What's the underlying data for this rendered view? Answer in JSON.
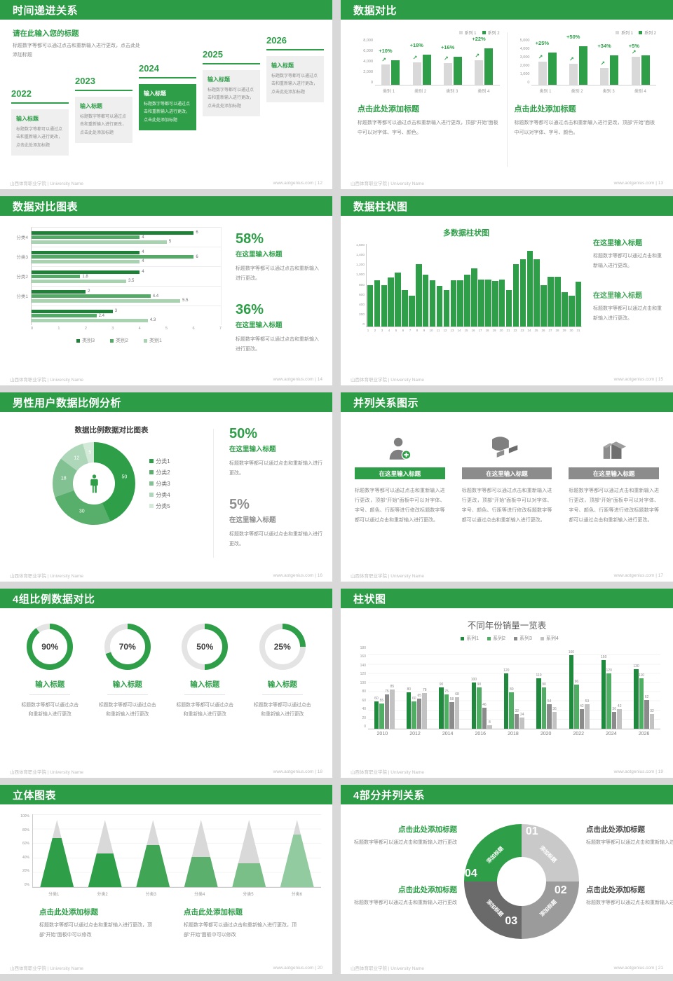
{
  "page_bg": "#d8d8d8",
  "accent_green": "#2d9c46",
  "footer": {
    "left": "山西体育职业学院 | University Name",
    "site": "www.aotgenius.com"
  },
  "slides": {
    "s12": {
      "title": "时间递进关系",
      "page": "12",
      "footer_right": "www.aotgenius.com | 12",
      "intro_title": "请在此输入您的标题",
      "intro_body": "标题数字等都可以通过点击和重新输入进行更改，点击此处添加标题",
      "milestones": [
        {
          "year": "2022",
          "box_title": "输入标题",
          "box_body": "标题数字等都可以通过点击和重新输入进行更改，点击此处添加标题",
          "highlight": false
        },
        {
          "year": "2023",
          "box_title": "输入标题",
          "box_body": "标题数字等都可以通过点击和重新输入进行更改，点击此处添加标题",
          "highlight": false
        },
        {
          "year": "2024",
          "box_title": "输入标题",
          "box_body": "标题数字等都可以通过点击和重新输入进行更改，点击此处添加标题",
          "highlight": true
        },
        {
          "year": "2025",
          "box_title": "输入标题",
          "box_body": "标题数字等都可以通过点击和重新输入进行更改，点击此处添加标题",
          "highlight": false
        },
        {
          "year": "2026",
          "box_title": "输入标题",
          "box_body": "标题数字等都可以通过点击和重新输入进行更改，点击此处添加标题",
          "highlight": false
        }
      ]
    },
    "s13": {
      "title": "数据对比",
      "page": "13",
      "footer_right": "www.aotgenius.com | 13",
      "panels": [
        {
          "legend": [
            "系列 1",
            "系列 2"
          ],
          "yticks": [
            "8,000",
            "6,000",
            "4,000",
            "2,000",
            "0"
          ],
          "ymax": 8000,
          "categories": [
            "类别 1",
            "类别 2",
            "类别 3",
            "类别 4"
          ],
          "gray": [
            3500,
            3900,
            3700,
            4300
          ],
          "green": [
            4200,
            5200,
            4800,
            6300
          ],
          "percents": [
            "+10%",
            "+18%",
            "+16%",
            "+22%"
          ],
          "caption_title": "点击此处添加标题",
          "caption_body": "标题数字等都可以通过点击和重新输入进行更改，顶部“开始”面板中可以对字体、字号、颜色。"
        },
        {
          "legend": [
            "系列 1",
            "系列 2"
          ],
          "yticks": [
            "5,000",
            "4,000",
            "3,000",
            "2,000",
            "1,000",
            "0"
          ],
          "ymax": 5000,
          "categories": [
            "类别 1",
            "类别 2",
            "类别 3",
            "类别 4"
          ],
          "gray": [
            2500,
            2300,
            1800,
            3000
          ],
          "green": [
            3500,
            4200,
            3200,
            3200
          ],
          "percents": [
            "+25%",
            "+50%",
            "+34%",
            "+5%"
          ],
          "caption_title": "点击此处添加标题",
          "caption_body": "标题数字等都可以通过点击和重新输入进行更改，顶部“开始”面板中可以对字体、字号、颜色。"
        }
      ]
    },
    "s14": {
      "title": "数据对比图表",
      "page": "14",
      "footer_right": "www.aotgenius.com | 14",
      "groups": [
        {
          "label": "分类4",
          "values": [
            6,
            4,
            5
          ]
        },
        {
          "label": "分类3",
          "values": [
            4,
            6,
            4
          ]
        },
        {
          "label": "分类2",
          "values": [
            4,
            1.8,
            3.5
          ]
        },
        {
          "label": "分类1",
          "values": [
            2,
            4.4,
            5.5
          ]
        },
        {
          "label": "",
          "values": [
            3,
            2.4,
            4.3
          ]
        }
      ],
      "xmax": 7,
      "xticks": [
        "0",
        "1",
        "2",
        "3",
        "4",
        "5",
        "6",
        "7"
      ],
      "legend": [
        "类别3",
        "类别2",
        "类别1"
      ],
      "bar_colors": [
        "#1f8038",
        "#55aa68",
        "#a8d2b0"
      ],
      "stats": [
        {
          "pct": "58%",
          "subtitle": "在这里输入标题",
          "body": "标题数字等都可以通过点击和重新输入进行更改。"
        },
        {
          "pct": "36%",
          "subtitle": "在这里输入标题",
          "body": "标题数字等都可以通过点击和重新输入进行更改。"
        }
      ]
    },
    "s15": {
      "title": "数据柱状图",
      "page": "15",
      "footer_right": "www.aotgenius.com | 15",
      "chart_title": "多数据柱状图",
      "yticks": [
        "1,600",
        "1,400",
        "1,200",
        "1,000",
        "800",
        "600",
        "400",
        "200",
        "0"
      ],
      "ymax": 1600,
      "values": [
        800,
        900,
        800,
        950,
        1040,
        700,
        590,
        1200,
        1000,
        900,
        790,
        700,
        900,
        900,
        1010,
        1120,
        910,
        910,
        880,
        905,
        700,
        1200,
        1300,
        1460,
        1300,
        800,
        960,
        965,
        660,
        590,
        870
      ],
      "texts": [
        {
          "subtitle": "在这里输入标题",
          "body": "标题数字等都可以通过点击和重新输入进行更改。"
        },
        {
          "subtitle": "在这里输入标题",
          "body": "标题数字等都可以通过点击和重新输入进行更改。"
        }
      ]
    },
    "s16": {
      "title": "男性用户数据比例分析",
      "page": "16",
      "footer_right": "www.aotgenius.com | 16",
      "chart_title": "数据比例数据对比图表",
      "segments": [
        {
          "label": "分类1",
          "value": 50,
          "color": "#2e9e48"
        },
        {
          "label": "分类2",
          "value": 30,
          "color": "#58ae6b"
        },
        {
          "label": "分类3",
          "value": 18,
          "color": "#82c292"
        },
        {
          "label": "分类4",
          "value": 12,
          "color": "#aed6b8"
        },
        {
          "label": "分类5",
          "value": 5,
          "color": "#d4ead9"
        }
      ],
      "stats": [
        {
          "pct": "50%",
          "subtitle": "在这里输入标题",
          "body": "标题数字等都可以通过点击和重新输入进行更改。",
          "muted": false
        },
        {
          "pct": "5%",
          "subtitle": "在这里输入标题",
          "body": "标题数字等都可以通过点击和重新输入进行更改。",
          "muted": true
        }
      ]
    },
    "s17": {
      "title": "并列关系图示",
      "page": "17",
      "footer_right": "www.aotgenius.com | 17",
      "items": [
        {
          "icon": "person-add-icon",
          "button": "在这里输入标题",
          "accent": true,
          "body": "标题数字等都可以通过点击和重新输入进行更改，顶部“开始”面板中可以对字体、字号、颜色、行距等进行修改标题数字等都可以通过点击和重新输入进行更改。"
        },
        {
          "icon": "pie-3d-icon",
          "button": "在这里输入标题",
          "accent": false,
          "body": "标题数字等都可以通过点击和重新输入进行更改，顶部“开始”面板中可以对字体、字号、颜色、行距等进行修改标题数字等都可以通过点击和重新输入进行更改。"
        },
        {
          "icon": "building-icon",
          "button": "在这里输入标题",
          "accent": false,
          "body": "标题数字等都可以通过点击和重新输入进行更改，顶部“开始”面板中可以对字体、字号、颜色、行距等进行修改标题数字等都可以通过点击和重新输入进行更改。"
        }
      ]
    },
    "s18": {
      "title": "4组比例数据对比",
      "page": "18",
      "footer_right": "www.aotgenius.com | 18",
      "items": [
        {
          "pct": 90,
          "pct_label": "90%",
          "label": "输入标题",
          "body": "标题数字等都可以通过点击和重新输入进行更改"
        },
        {
          "pct": 70,
          "pct_label": "70%",
          "label": "输入标题",
          "body": "标题数字等都可以通过点击和重新输入进行更改"
        },
        {
          "pct": 50,
          "pct_label": "50%",
          "label": "输入标题",
          "body": "标题数字等都可以通过点击和重新输入进行更改"
        },
        {
          "pct": 25,
          "pct_label": "25%",
          "label": "输入标题",
          "body": "标题数字等都可以通过点击和重新输入进行更改"
        }
      ]
    },
    "s19": {
      "title": "柱状图",
      "page": "19",
      "footer_right": "www.aotgenius.com | 19",
      "chart_title": "不同年份销量一览表",
      "legend": [
        {
          "label": "系列1",
          "color": "#1f8a3d"
        },
        {
          "label": "系列2",
          "color": "#4fae64"
        },
        {
          "label": "系列3",
          "color": "#8b8b8b"
        },
        {
          "label": "系列4",
          "color": "#c2c2c2"
        }
      ],
      "categories": [
        "2010",
        "2012",
        "2014",
        "2016",
        "2018",
        "2020",
        "2022",
        "2024",
        "2026"
      ],
      "series": [
        [
          60,
          80,
          90,
          100,
          120,
          110,
          160,
          150,
          130
        ],
        [
          55,
          60,
          75,
          90,
          80,
          90,
          96,
          120,
          110
        ],
        [
          75,
          65,
          58,
          46,
          32,
          54,
          42,
          36,
          62
        ],
        [
          85,
          78,
          68,
          8,
          24,
          36,
          53,
          42,
          32
        ]
      ],
      "ymax": 180,
      "yticks": [
        "180",
        "160",
        "140",
        "120",
        "100",
        "80",
        "60",
        "40",
        "20",
        "0"
      ]
    },
    "s20": {
      "title": "立体图表",
      "page": "20",
      "footer_right": "www.aotgenius.com | 20",
      "categories": [
        "分类1",
        "分类2",
        "分类3",
        "分类4",
        "分类5",
        "分类6"
      ],
      "fills": [
        73,
        50,
        62,
        45,
        35,
        78
      ],
      "colors": [
        "#2e9e48",
        "#2e9e48",
        "#41a556",
        "#5bb06d",
        "#79bf87",
        "#92cba0"
      ],
      "yticks": [
        "100%",
        "80%",
        "60%",
        "40%",
        "20%",
        "0%"
      ],
      "captions": [
        {
          "t": "点击此处添加标题",
          "b": "标题数字等都可以通过点击和重新输入进行更改，顶部“开始”面板中可以修改"
        },
        {
          "t": "点击此处添加标题",
          "b": "标题数字等都可以通过点击和重新输入进行更改，顶部“开始”面板中可以修改"
        }
      ]
    },
    "s21": {
      "title": "4部分并列关系",
      "page": "21",
      "footer_right": "www.aotgenius.com | 21",
      "segments": [
        {
          "num": "01",
          "label": "添加标题",
          "color": "#c9c9c9"
        },
        {
          "num": "02",
          "label": "添加标题",
          "color": "#9b9b9b"
        },
        {
          "num": "03",
          "label": "添加标题",
          "color": "#6a6a6a"
        },
        {
          "num": "04",
          "label": "添加标题",
          "color": "#2e9e48"
        }
      ],
      "blocks": [
        {
          "t": "点击此处添加标题",
          "b": "标题数字等都可以通过点击和重新输入进行更改",
          "green": true
        },
        {
          "t": "点击此处添加标题",
          "b": "标题数字等都可以通过点击和重新输入进行更改",
          "green": false
        },
        {
          "t": "点击此处添加标题",
          "b": "标题数字等都可以通过点击和重新输入进行更改",
          "green": true
        },
        {
          "t": "点击此处添加标题",
          "b": "标题数字等都可以通过点击和重新输入进行更改",
          "green": false
        }
      ]
    }
  },
  "chart_data": [
    {
      "type": "bar",
      "slide": "13-left",
      "categories": [
        "类别 1",
        "类别 2",
        "类别 3",
        "类别 4"
      ],
      "series": [
        {
          "name": "系列 1",
          "values": [
            3500,
            3900,
            3700,
            4300
          ]
        },
        {
          "name": "系列 2",
          "values": [
            4200,
            5200,
            4800,
            6300
          ]
        }
      ],
      "annotations": [
        "+10%",
        "+18%",
        "+16%",
        "+22%"
      ],
      "ylim": [
        0,
        8000
      ],
      "legend_position": "top-right"
    },
    {
      "type": "bar",
      "slide": "13-right",
      "categories": [
        "类别 1",
        "类别 2",
        "类别 3",
        "类别 4"
      ],
      "series": [
        {
          "name": "系列 1",
          "values": [
            2500,
            2300,
            1800,
            3000
          ]
        },
        {
          "name": "系列 2",
          "values": [
            3500,
            4200,
            3200,
            3200
          ]
        }
      ],
      "annotations": [
        "+25%",
        "+50%",
        "+34%",
        "+5%"
      ],
      "ylim": [
        0,
        5000
      ],
      "legend_position": "top-right"
    },
    {
      "type": "bar",
      "slide": "14",
      "orientation": "horizontal",
      "categories": [
        "分类4",
        "分类3",
        "分类2",
        "分类1",
        ""
      ],
      "series": [
        {
          "name": "类别3",
          "values": [
            6,
            4,
            4,
            2,
            3
          ]
        },
        {
          "name": "类别2",
          "values": [
            4,
            6,
            1.8,
            4.4,
            2.4
          ]
        },
        {
          "name": "类别1",
          "values": [
            5,
            4,
            3.5,
            5.5,
            4.3
          ]
        }
      ],
      "xlim": [
        0,
        7
      ],
      "legend_position": "bottom"
    },
    {
      "type": "bar",
      "slide": "15",
      "title": "多数据柱状图",
      "x": [
        1,
        2,
        3,
        4,
        5,
        6,
        7,
        8,
        9,
        10,
        11,
        12,
        13,
        14,
        15,
        16,
        17,
        18,
        19,
        20,
        21,
        22,
        23,
        24,
        25,
        26,
        27,
        28,
        29,
        30,
        31
      ],
      "values": [
        800,
        900,
        800,
        950,
        1040,
        700,
        590,
        1200,
        1000,
        900,
        790,
        700,
        900,
        900,
        1010,
        1120,
        910,
        910,
        880,
        905,
        700,
        1200,
        1300,
        1460,
        1300,
        800,
        960,
        965,
        660,
        590,
        870
      ],
      "ylim": [
        0,
        1600
      ]
    },
    {
      "type": "pie",
      "slide": "16",
      "title": "数据比例数据对比图表",
      "donut": true,
      "categories": [
        "分类1",
        "分类2",
        "分类3",
        "分类4",
        "分类5"
      ],
      "values": [
        50,
        30,
        18,
        12,
        5
      ]
    },
    {
      "type": "pie",
      "slide": "18",
      "subtype": "progress-rings",
      "values": [
        90,
        70,
        50,
        25
      ]
    },
    {
      "type": "bar",
      "slide": "19",
      "title": "不同年份销量一览表",
      "categories": [
        "2010",
        "2012",
        "2014",
        "2016",
        "2018",
        "2020",
        "2022",
        "2024",
        "2026"
      ],
      "series": [
        {
          "name": "系列1",
          "values": [
            60,
            80,
            90,
            100,
            120,
            110,
            160,
            150,
            130
          ]
        },
        {
          "name": "系列2",
          "values": [
            55,
            60,
            75,
            90,
            80,
            90,
            96,
            120,
            110
          ]
        },
        {
          "name": "系列3",
          "values": [
            75,
            65,
            58,
            46,
            32,
            54,
            42,
            36,
            62
          ]
        },
        {
          "name": "系列4",
          "values": [
            85,
            78,
            68,
            8,
            24,
            36,
            53,
            42,
            32
          ]
        }
      ],
      "ylim": [
        0,
        180
      ],
      "legend_position": "top"
    },
    {
      "type": "bar",
      "slide": "20",
      "subtype": "cone",
      "categories": [
        "分类1",
        "分类2",
        "分类3",
        "分类4",
        "分类5",
        "分类6"
      ],
      "values": [
        73,
        50,
        62,
        45,
        35,
        78
      ],
      "ylim": [
        0,
        100
      ],
      "ylabel": "%"
    }
  ]
}
